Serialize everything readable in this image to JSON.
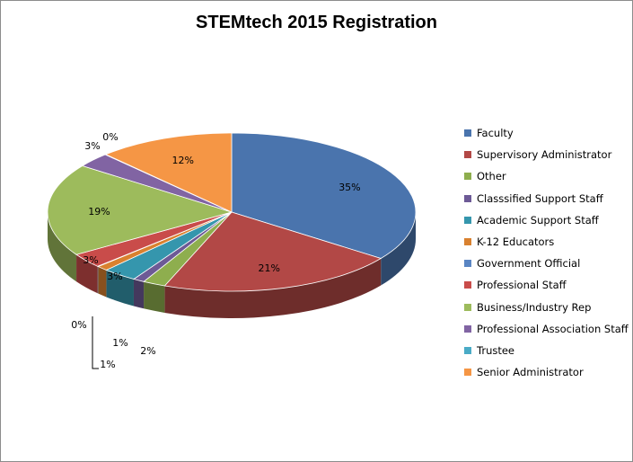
{
  "chart_data": {
    "type": "pie",
    "title": "STEMtech 2015 Registration",
    "three_d": true,
    "legend_position": "right",
    "series": [
      {
        "name": "Faculty",
        "value": 35,
        "label": "35%",
        "color": "#4a74ad"
      },
      {
        "name": "Supervisory Administrator",
        "value": 21,
        "label": "21%",
        "color": "#b24846"
      },
      {
        "name": "Other",
        "value": 2,
        "label": "2%",
        "color": "#8eae4e"
      },
      {
        "name": "Classsified Support Staff",
        "value": 1,
        "label": "1%",
        "color": "#6d5a96"
      },
      {
        "name": "Academic Support Staff",
        "value": 3,
        "label": "3%",
        "color": "#3596ad"
      },
      {
        "name": "K-12 Educators",
        "value": 1,
        "label": "1%",
        "color": "#d9812f"
      },
      {
        "name": "Government Official",
        "value": 0,
        "label": "0%",
        "color": "#5a85c3"
      },
      {
        "name": "Professional Staff",
        "value": 3,
        "label": "3%",
        "color": "#c94c4a"
      },
      {
        "name": "Business/Industry Rep",
        "value": 19,
        "label": "19%",
        "color": "#9dbb5c"
      },
      {
        "name": "Professional Association Staff",
        "value": 3,
        "label": "3%",
        "color": "#8164a3"
      },
      {
        "name": "Trustee",
        "value": 0,
        "label": "0%",
        "color": "#4aabc6"
      },
      {
        "name": "Senior Administrator",
        "value": 12,
        "label": "12%",
        "color": "#f59645"
      }
    ]
  }
}
